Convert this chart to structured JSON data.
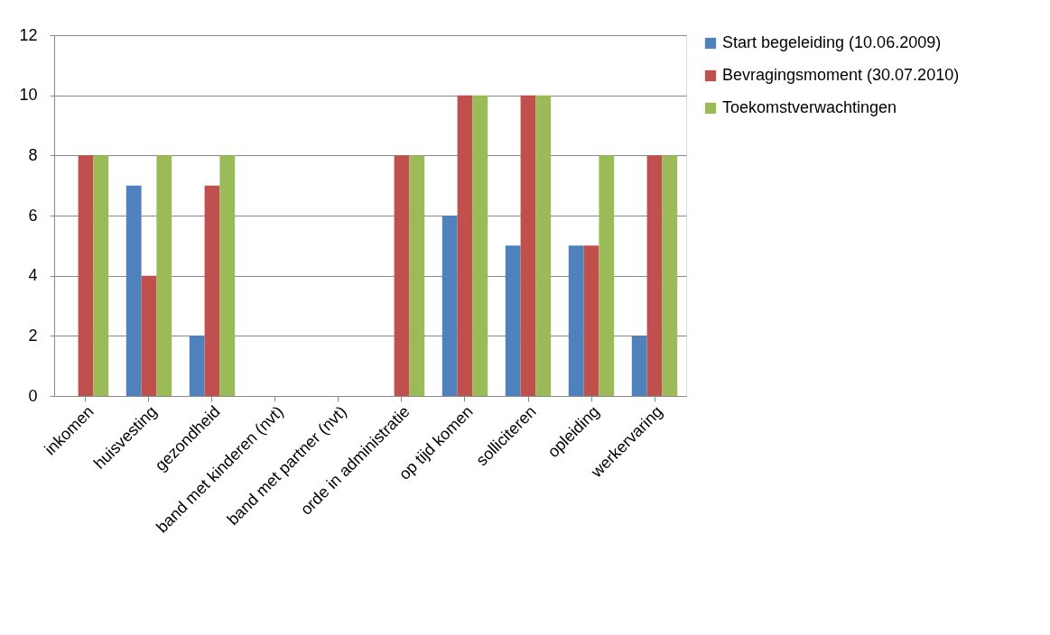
{
  "chart_data": {
    "type": "bar",
    "categories": [
      "inkomen",
      "huisvesting",
      "gezondheid",
      "band met kinderen (nvt)",
      "band met partner (nvt)",
      "orde in administratie",
      "op tijd komen",
      "solliciteren",
      "opleiding",
      "werkervaring"
    ],
    "series": [
      {
        "name": "Start begeleiding (10.06.2009)",
        "color": "#4f81bd",
        "values": [
          0,
          7,
          2,
          null,
          null,
          0,
          6,
          5,
          5,
          2
        ]
      },
      {
        "name": "Bevragingsmoment (30.07.2010)",
        "color": "#c0504d",
        "values": [
          8,
          4,
          7,
          null,
          null,
          8,
          10,
          10,
          5,
          8
        ]
      },
      {
        "name": "Toekomstverwachtingen",
        "color": "#9bbb59",
        "values": [
          8,
          8,
          8,
          null,
          null,
          8,
          10,
          10,
          8,
          8
        ]
      }
    ],
    "ylim": [
      0,
      12
    ],
    "yticks": [
      0,
      2,
      4,
      6,
      8,
      10,
      12
    ],
    "grid": "y",
    "legend": "right"
  }
}
